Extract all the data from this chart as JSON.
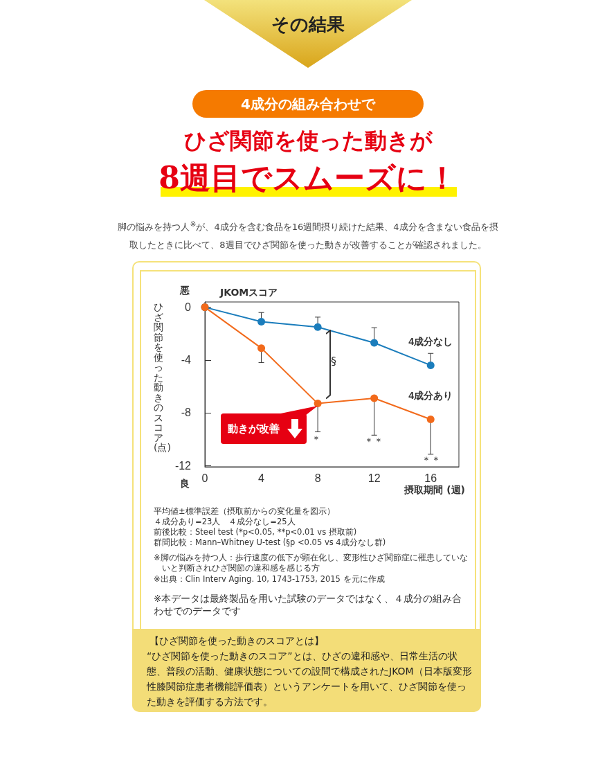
{
  "chart_data": {
    "type": "line",
    "title": "ひざ関節を使った動きが",
    "subtitle": "8週目でスムーズに！",
    "xlabel": "摂取期間 (週)",
    "ylabel": "ひざ関節を使った動きのスコア(点)",
    "x": [
      0,
      4,
      8,
      12,
      16
    ],
    "series": [
      {
        "name": "4成分なし",
        "color": "#1b7dbc",
        "values": [
          0,
          -1.1,
          -1.5,
          -2.7,
          -4.4
        ],
        "errors": [
          null,
          [
            -1.1,
            -0.4
          ],
          [
            -1.5,
            -0.75
          ],
          [
            -2.7,
            -1.55
          ],
          [
            -4.4,
            -3.5
          ]
        ]
      },
      {
        "name": "4成分あり",
        "color": "#f26a1b",
        "values": [
          0,
          -3.1,
          -7.3,
          -6.9,
          -8.5
        ],
        "errors": [
          null,
          [
            -4.2,
            -3.1
          ],
          [
            -9.45,
            -7.3
          ],
          [
            -9.7,
            -6.9
          ],
          [
            -11.15,
            -8.5
          ]
        ]
      }
    ],
    "xlim": [
      0,
      18
    ],
    "xticks": [
      0,
      4,
      8,
      12,
      16
    ],
    "ylim": [
      -12.1,
      0.4
    ],
    "yticks": [
      0,
      -4,
      -8,
      -12
    ],
    "marker": "circle",
    "line_style": "solid",
    "grid": false,
    "legend": false,
    "annotations": [
      "その結果",
      "4成分の組み合わせで",
      "脚の悩みを持つ人$^{※}$が、4成分を含む食品を16週間摂り続けた結果、4成分を含まない食品を摂取したときに比べて、8週目でひざ関節を使った動きが改善することが確認されました。",
      "JKOMスコア",
      "悪",
      "良",
      "§",
      "＊",
      "＊＊",
      "＊＊",
      {
        "text": "動きが改善",
        "x": 8,
        "y": -7.3
      },
      "平均値±標準誤差（摂取前からの変化量を図示）",
      "４成分あり=23人　４成分なし=25人",
      "前後比較：Steel test (*p<0.05, **p<0.01 vs 摂取前)",
      "群間比較：Mann–Whitney U-test (§p <0.05 vs 4成分なし群)",
      "※脚の悩みを持つ人：歩行速度の低下が顕在化し、変形性ひざ関節症に罹患していないと判断されひざ関節の違和感を感じる方",
      "※出典：Clin Interv Aging. 10, 1743-1753, 2015 を元に作成",
      "※本データは最終製品を用いた試験のデータではなく、４成分の組み合わせでのデータです",
      "【ひざ関節を使った動きのスコアとは】",
      "“ひざ関節を使った動きのスコア”とは、ひざの違和感や、日常生活の状態、普段の活動、健康状態についての設問で構成されたJKOM（日本版変形性膝関節症患者機能評価表）というアンケートを用いて、ひざ関節を使った動きを評価する方法です。"
    ]
  }
}
